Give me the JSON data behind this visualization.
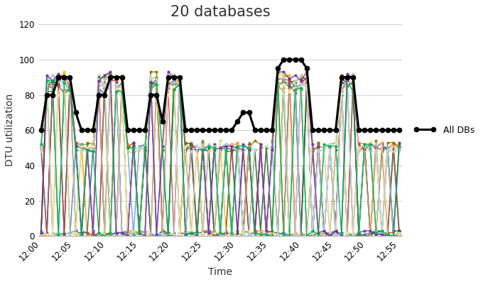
{
  "title": "20 databases",
  "xlabel": "Time",
  "ylabel": "DTU utilization",
  "ylim": [
    0,
    120
  ],
  "yticks": [
    0,
    20,
    40,
    60,
    80,
    100,
    120
  ],
  "time_labels": [
    "12:00",
    "12:05",
    "12:10",
    "12:15",
    "12:20",
    "12:25",
    "12:30",
    "12:35",
    "12:40",
    "12:45",
    "12:50",
    "12:55"
  ],
  "all_dbs_line": [
    60,
    80,
    80,
    90,
    90,
    90,
    70,
    60,
    60,
    60,
    80,
    80,
    90,
    90,
    90,
    60,
    60,
    60,
    60,
    80,
    80,
    65,
    90,
    90,
    90,
    60,
    60,
    60,
    60,
    60,
    60,
    60,
    60,
    60,
    65,
    70,
    70,
    60,
    60,
    60,
    60,
    95,
    100,
    100,
    100,
    100,
    95,
    60,
    60,
    60,
    60,
    60,
    90,
    90,
    90,
    60,
    60,
    60,
    60,
    60,
    60,
    60,
    60
  ],
  "n_points": 63,
  "n_dbs": 20,
  "background_color": "#ffffff",
  "grid_color": "#d3d3d3",
  "all_dbs_color": "#000000",
  "title_fontsize": 15,
  "axis_label_fontsize": 10,
  "tick_fontsize": 8.5,
  "legend_fontsize": 9,
  "db_colors": [
    "#4472c4",
    "#ed7d31",
    "#ffc000",
    "#70ad47",
    "#5b9bd5",
    "#a9d18e",
    "#255e91",
    "#9e480e",
    "#636363",
    "#997300",
    "#264478",
    "#43682b",
    "#be4b48",
    "#9dc3e6",
    "#f4b183",
    "#c5e0b4",
    "#ffe699",
    "#bdd7ee",
    "#7030a0",
    "#00b050"
  ],
  "high_vals": [
    50,
    51,
    50,
    52,
    50,
    49,
    50,
    51,
    50,
    52,
    50,
    50,
    51,
    50,
    50,
    50,
    52,
    50,
    51,
    50
  ],
  "low_vals": [
    0,
    0,
    0,
    0,
    0,
    0,
    0,
    0,
    0,
    0,
    0,
    0,
    0,
    0,
    0,
    0,
    0,
    0,
    0,
    0
  ],
  "spike_high_vals": [
    88,
    85,
    90,
    87,
    86,
    89,
    83,
    88,
    85,
    90,
    87,
    84,
    86,
    88,
    85,
    89,
    83,
    87,
    90,
    85
  ]
}
